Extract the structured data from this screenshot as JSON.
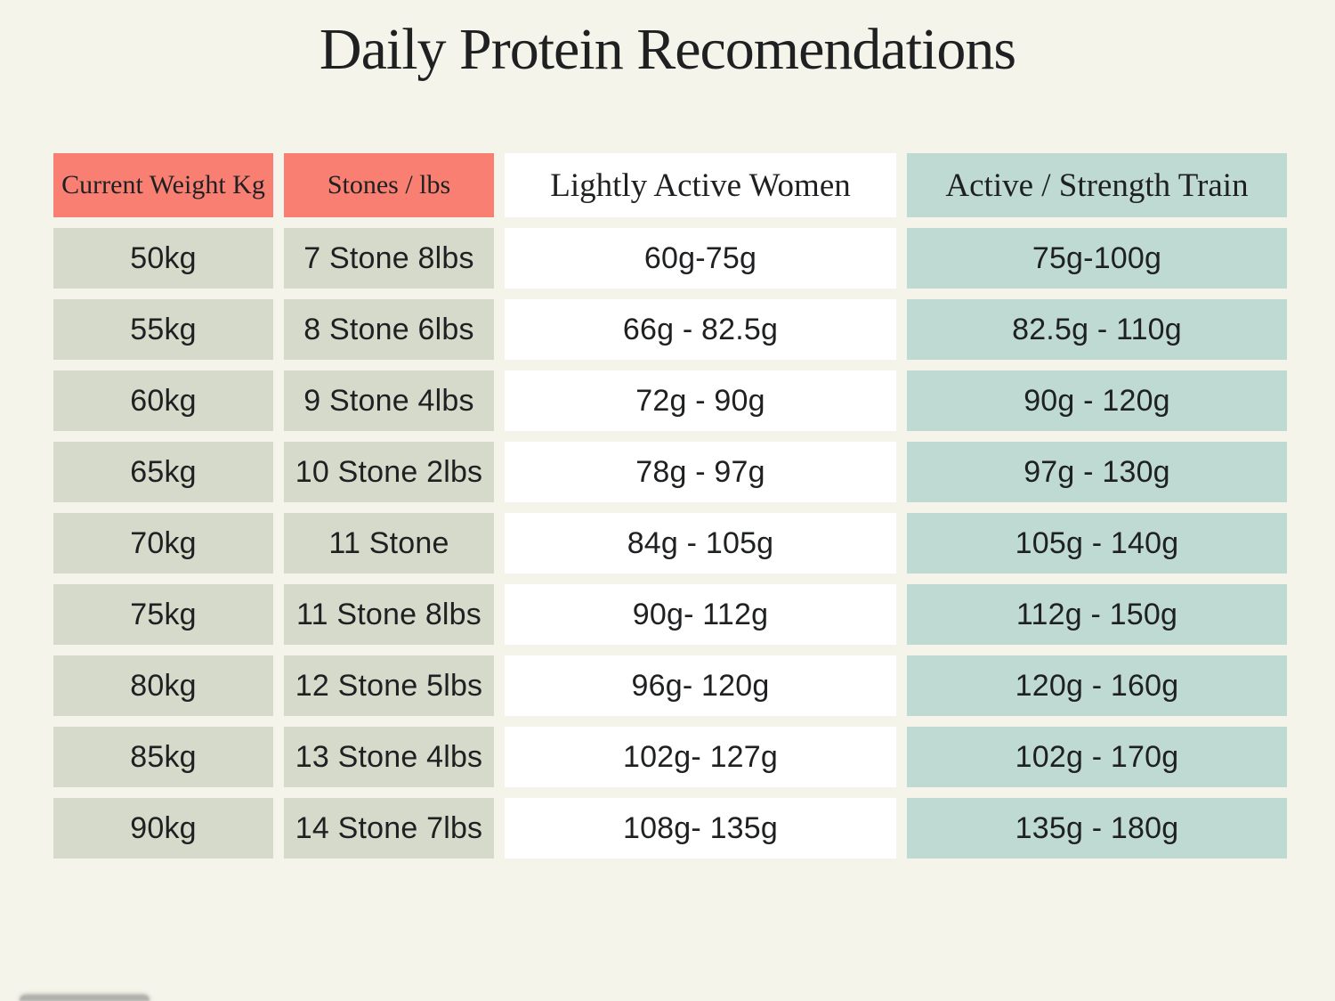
{
  "page": {
    "title": "Daily Protein Recomendations"
  },
  "colors": {
    "background": "#F5F4EA",
    "coral_header": "#F97F73",
    "sage_cell": "#D6DACB",
    "white_cell": "#FFFFFF",
    "teal_cell": "#BEDAD3",
    "text": "#1E2022"
  },
  "table": {
    "columns": [
      {
        "id": "current-weight-kg",
        "label": "Current Weight Kg"
      },
      {
        "id": "stones-lbs",
        "label": "Stones / lbs"
      },
      {
        "id": "lightly-active-women",
        "label": "Lightly Active Women"
      },
      {
        "id": "active-strength-train",
        "label": "Active / Strength Train"
      }
    ],
    "rows": [
      [
        "50kg",
        "7 Stone 8lbs",
        "60g-75g",
        "75g-100g"
      ],
      [
        "55kg",
        "8 Stone 6lbs",
        "66g - 82.5g",
        "82.5g - 110g"
      ],
      [
        "60kg",
        "9 Stone 4lbs",
        "72g - 90g",
        "90g - 120g"
      ],
      [
        "65kg",
        "10 Stone 2lbs",
        "78g - 97g",
        "97g - 130g"
      ],
      [
        "70kg",
        "11 Stone",
        "84g - 105g",
        "105g - 140g"
      ],
      [
        "75kg",
        "11 Stone 8lbs",
        "90g- 112g",
        "112g - 150g"
      ],
      [
        "80kg",
        "12 Stone 5lbs",
        "96g- 120g",
        "120g - 160g"
      ],
      [
        "85kg",
        "13 Stone 4lbs",
        "102g- 127g",
        "102g - 170g"
      ],
      [
        "90kg",
        "14 Stone 7lbs",
        "108g- 135g",
        "135g - 180g"
      ]
    ]
  },
  "chart_data": {
    "type": "table",
    "title": "Daily Protein Recomendations",
    "columns": [
      "Current Weight Kg",
      "Stones / lbs",
      "Lightly Active Women",
      "Active / Strength Train"
    ],
    "rows": [
      [
        "50kg",
        "7 Stone 8lbs",
        "60g-75g",
        "75g-100g"
      ],
      [
        "55kg",
        "8 Stone 6lbs",
        "66g - 82.5g",
        "82.5g - 110g"
      ],
      [
        "60kg",
        "9 Stone 4lbs",
        "72g - 90g",
        "90g - 120g"
      ],
      [
        "65kg",
        "10 Stone 2lbs",
        "78g - 97g",
        "97g - 130g"
      ],
      [
        "70kg",
        "11 Stone",
        "84g - 105g",
        "105g - 140g"
      ],
      [
        "75kg",
        "11 Stone 8lbs",
        "90g- 112g",
        "112g - 150g"
      ],
      [
        "80kg",
        "12 Stone 5lbs",
        "96g- 120g",
        "120g - 160g"
      ],
      [
        "85kg",
        "13 Stone 4lbs",
        "102g- 127g",
        "102g - 170g"
      ],
      [
        "90kg",
        "14 Stone 7lbs",
        "108g- 135g",
        "135g - 180g"
      ]
    ]
  }
}
